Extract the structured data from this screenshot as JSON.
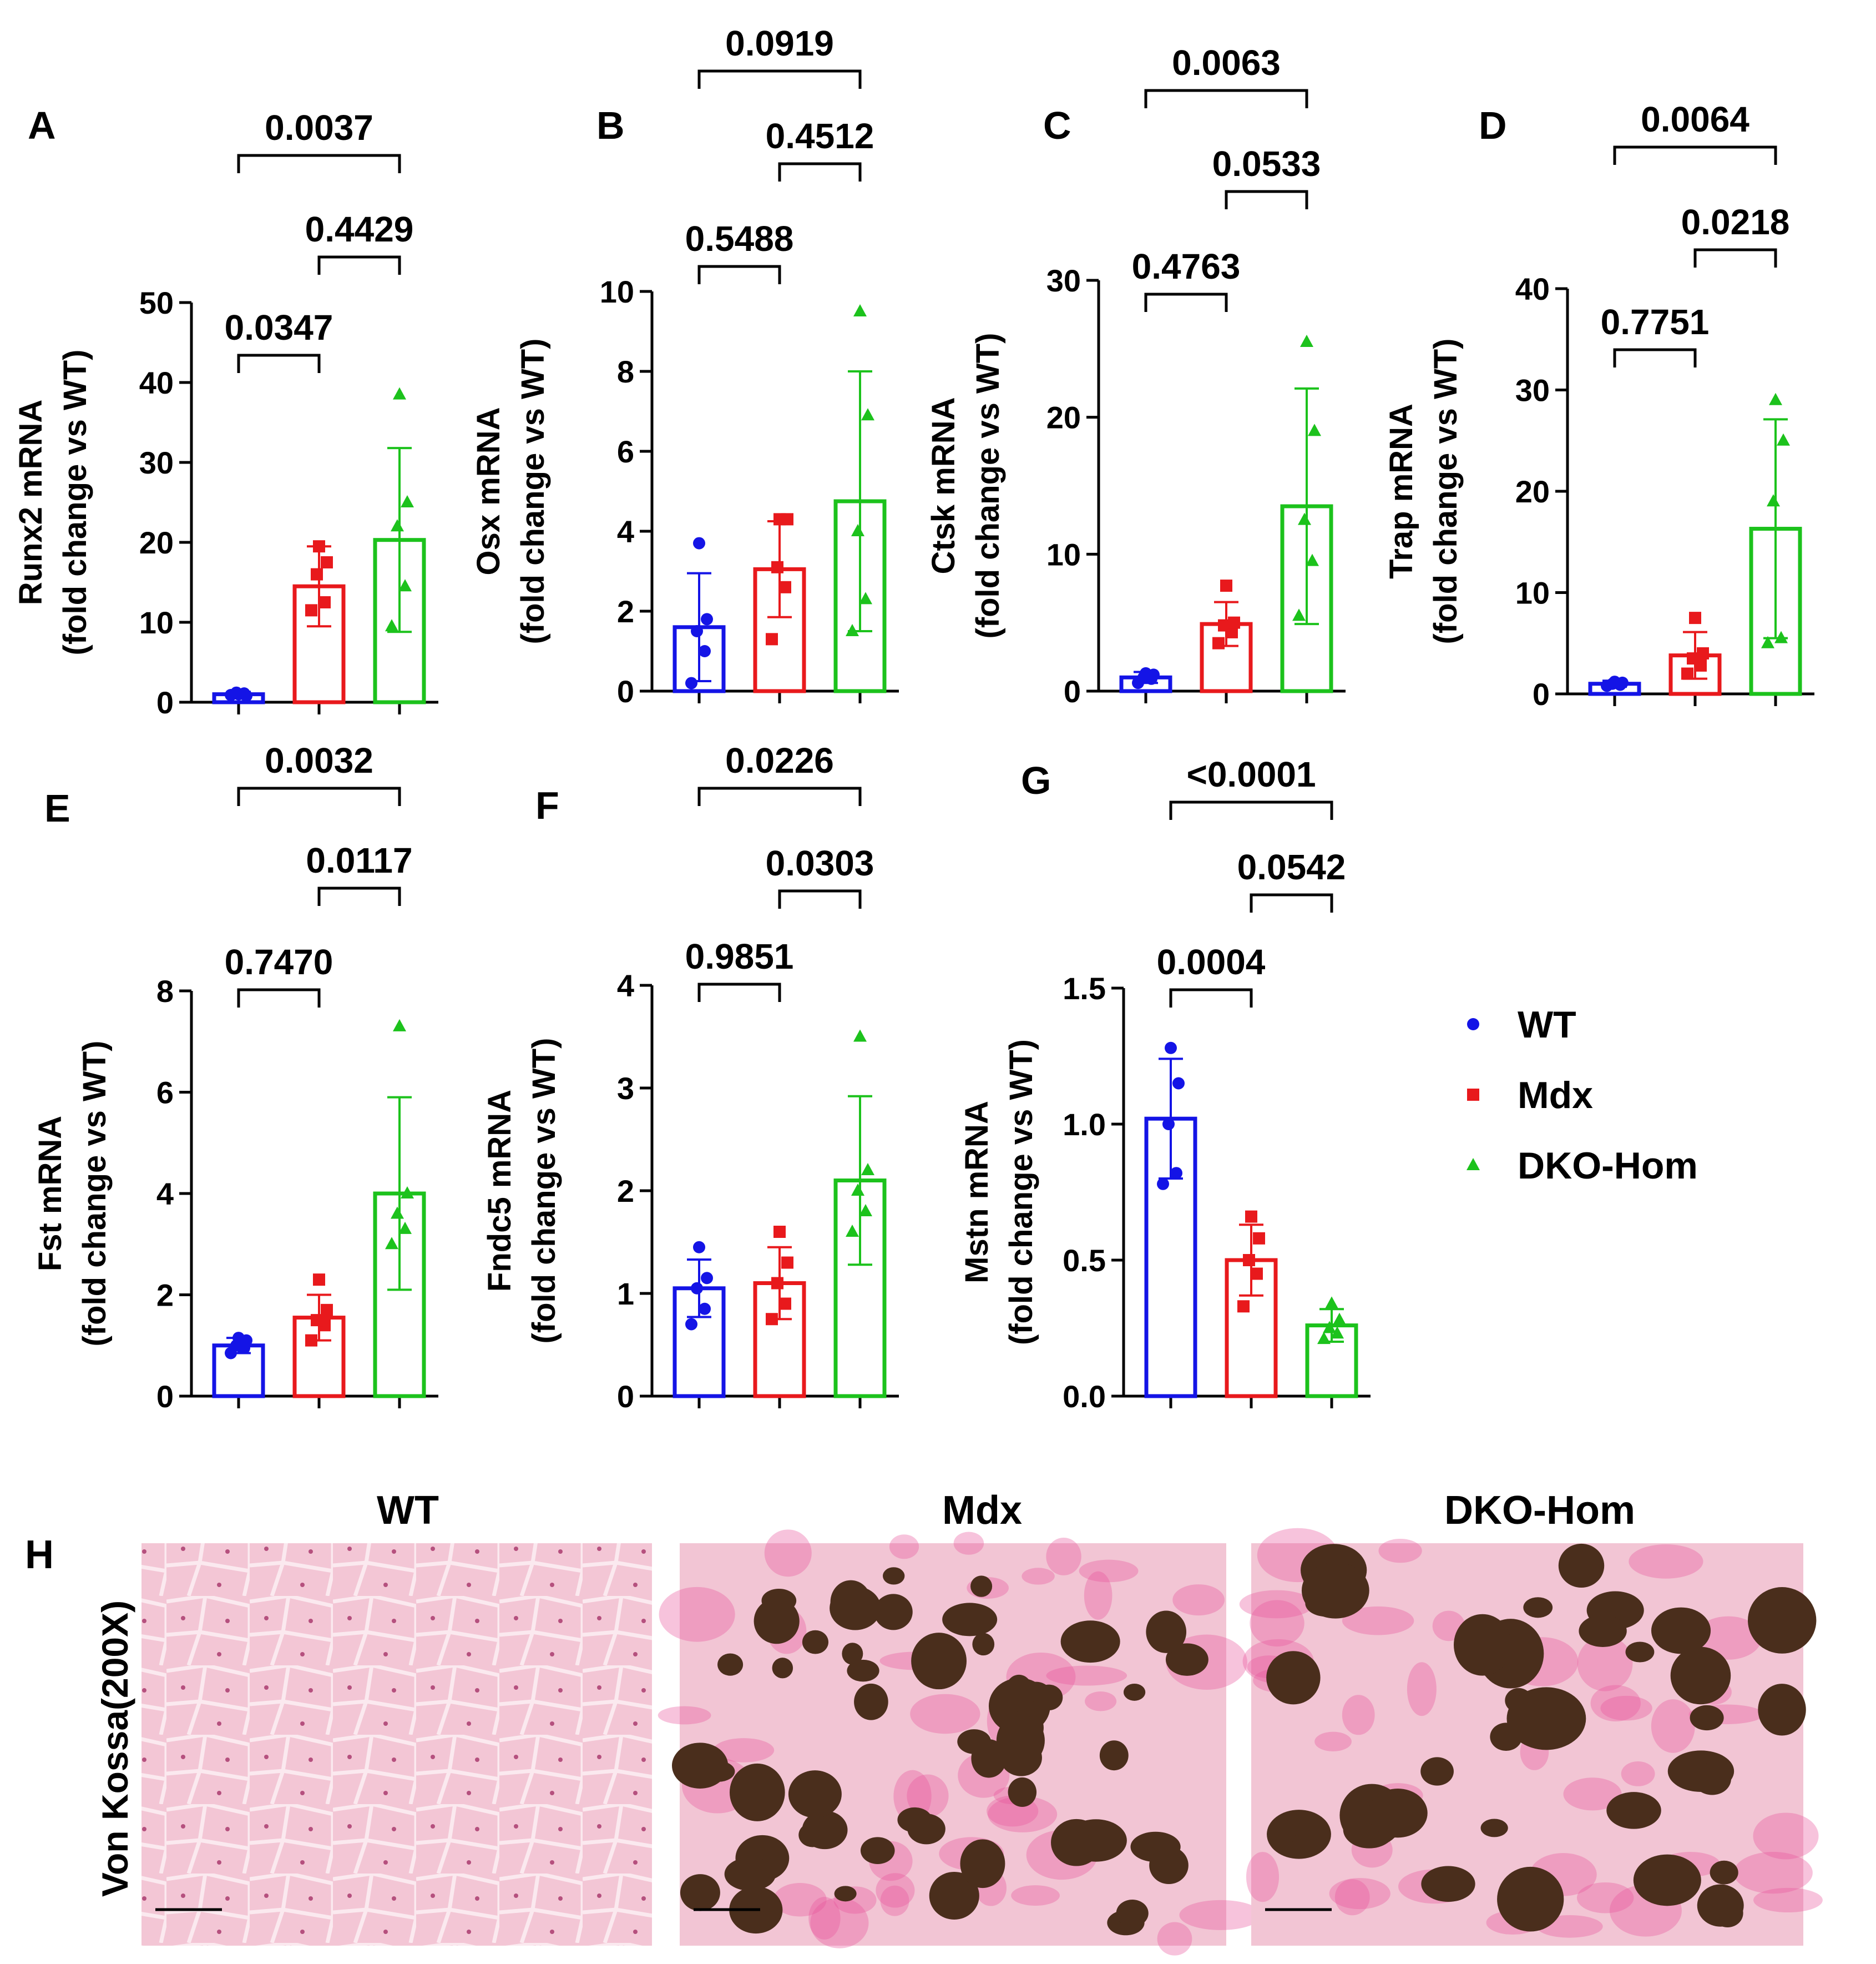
{
  "colors": {
    "WT": "#1414e6",
    "Mdx": "#e8191c",
    "DKO-Hom": "#1cc21c",
    "axis": "#000000",
    "tissue_bg": "#f2c5d4",
    "mineral": "#4a2e1c"
  },
  "legend": {
    "items": [
      {
        "label": "WT",
        "color": "#1414e6",
        "marker": "circle"
      },
      {
        "label": "Mdx",
        "color": "#e8191c",
        "marker": "square"
      },
      {
        "label": "DKO-Hom",
        "color": "#1cc21c",
        "marker": "triangle"
      }
    ]
  },
  "chart_data": [
    {
      "panel": "A",
      "type": "bar",
      "ylabel_line1": "Runx2 mRNA",
      "ylabel_line2": "(fold change vs  WT)",
      "ylim": [
        0,
        50
      ],
      "yticks": [
        "0",
        "10",
        "20",
        "30",
        "40",
        "50"
      ],
      "categories": [
        "WT",
        "Mdx",
        "DKO-Hom"
      ],
      "means": [
        1.0,
        14.5,
        20.3
      ],
      "sd": [
        0.3,
        5.0,
        11.5
      ],
      "points": [
        [
          0.9,
          1.1,
          1.2,
          0.8,
          1.0
        ],
        [
          11.5,
          12.5,
          16.0,
          17.5,
          19.5
        ],
        [
          9.5,
          14.5,
          22.0,
          25.0,
          38.5
        ]
      ],
      "comparisons": [
        {
          "p": "0.0347",
          "from": 0,
          "to": 1
        },
        {
          "p": "0.4429",
          "from": 1,
          "to": 2
        },
        {
          "p": "0.0037",
          "from": 0,
          "to": 2
        }
      ]
    },
    {
      "panel": "B",
      "type": "bar",
      "ylabel_line1": "Osx mRNA",
      "ylabel_line2": "(fold change vs WT)",
      "ylim": [
        0,
        10
      ],
      "yticks": [
        "0",
        "2",
        "4",
        "6",
        "8",
        "10"
      ],
      "categories": [
        "WT",
        "Mdx",
        "DKO-Hom"
      ],
      "means": [
        1.6,
        3.05,
        4.75
      ],
      "sd": [
        1.35,
        1.2,
        3.25
      ],
      "points": [
        [
          0.2,
          1.0,
          1.5,
          1.8,
          3.7
        ],
        [
          1.3,
          2.6,
          3.1,
          4.3,
          4.3
        ],
        [
          1.5,
          2.3,
          4.0,
          6.9,
          9.5
        ]
      ],
      "comparisons": [
        {
          "p": "0.5488",
          "from": 0,
          "to": 1
        },
        {
          "p": "0.4512",
          "from": 1,
          "to": 2
        },
        {
          "p": "0.0919",
          "from": 0,
          "to": 2
        }
      ]
    },
    {
      "panel": "C",
      "type": "bar",
      "ylabel_line1": "Ctsk mRNA",
      "ylabel_line2": "(fold change vs WT)",
      "ylim": [
        0,
        30
      ],
      "yticks": [
        "0",
        "10",
        "20",
        "30"
      ],
      "categories": [
        "WT",
        "Mdx",
        "DKO-Hom"
      ],
      "means": [
        1.0,
        4.9,
        13.5
      ],
      "sd": [
        0.4,
        1.6,
        8.6
      ],
      "points": [
        [
          0.6,
          0.9,
          1.0,
          1.2,
          1.3
        ],
        [
          3.5,
          4.3,
          4.8,
          5.0,
          7.7
        ],
        [
          5.5,
          9.5,
          12.5,
          19.0,
          25.5
        ]
      ],
      "comparisons": [
        {
          "p": "0.4763",
          "from": 0,
          "to": 1
        },
        {
          "p": "0.0533",
          "from": 1,
          "to": 2
        },
        {
          "p": "0.0063",
          "from": 0,
          "to": 2
        }
      ]
    },
    {
      "panel": "D",
      "type": "bar",
      "ylabel_line1": "Trap mRNA",
      "ylabel_line2": "(fold change vs WT)",
      "ylim": [
        0,
        40
      ],
      "yticks": [
        "0",
        "10",
        "20",
        "30",
        "40"
      ],
      "categories": [
        "WT",
        "Mdx",
        "DKO-Hom"
      ],
      "means": [
        1.0,
        3.8,
        16.3
      ],
      "sd": [
        0.3,
        2.3,
        10.8
      ],
      "points": [
        [
          0.8,
          0.9,
          1.0,
          1.1,
          1.2
        ],
        [
          2.0,
          2.8,
          3.5,
          4.0,
          7.5
        ],
        [
          5.0,
          5.5,
          19.0,
          25.0,
          29.0
        ]
      ],
      "comparisons": [
        {
          "p": "0.7751",
          "from": 0,
          "to": 1
        },
        {
          "p": "0.0218",
          "from": 1,
          "to": 2
        },
        {
          "p": "0.0064",
          "from": 0,
          "to": 2
        }
      ]
    },
    {
      "panel": "E",
      "type": "bar",
      "ylabel_line1": "Fst mRNA",
      "ylabel_line2": "(fold change vs WT)",
      "ylim": [
        0,
        8
      ],
      "yticks": [
        "0",
        "2",
        "4",
        "6",
        "8"
      ],
      "categories": [
        "WT",
        "Mdx",
        "DKO-Hom"
      ],
      "means": [
        1.0,
        1.55,
        4.0
      ],
      "sd": [
        0.15,
        0.45,
        1.9
      ],
      "points": [
        [
          0.85,
          0.95,
          1.0,
          1.1,
          1.15
        ],
        [
          1.1,
          1.4,
          1.5,
          1.7,
          2.3
        ],
        [
          3.0,
          3.3,
          3.6,
          4.0,
          7.3
        ]
      ],
      "comparisons": [
        {
          "p": "0.7470",
          "from": 0,
          "to": 1
        },
        {
          "p": "0.0117",
          "from": 1,
          "to": 2
        },
        {
          "p": "0.0032",
          "from": 0,
          "to": 2
        }
      ]
    },
    {
      "panel": "F",
      "type": "bar",
      "ylabel_line1": "Fndc5 mRNA",
      "ylabel_line2": "(fold change vs WT)",
      "ylim": [
        0,
        4
      ],
      "yticks": [
        "0",
        "1",
        "2",
        "3",
        "4"
      ],
      "categories": [
        "WT",
        "Mdx",
        "DKO-Hom"
      ],
      "means": [
        1.05,
        1.1,
        2.1
      ],
      "sd": [
        0.28,
        0.35,
        0.82
      ],
      "points": [
        [
          0.7,
          0.85,
          1.05,
          1.15,
          1.45
        ],
        [
          0.75,
          0.9,
          1.1,
          1.3,
          1.6
        ],
        [
          1.6,
          1.8,
          2.0,
          2.2,
          3.5
        ]
      ],
      "comparisons": [
        {
          "p": "0.9851",
          "from": 0,
          "to": 1
        },
        {
          "p": "0.0303",
          "from": 1,
          "to": 2
        },
        {
          "p": "0.0226",
          "from": 0,
          "to": 2
        }
      ]
    },
    {
      "panel": "G",
      "type": "bar",
      "ylabel_line1": "Mstn mRNA",
      "ylabel_line2": "(fold change vs WT)",
      "ylim": [
        0,
        1.5
      ],
      "yticks": [
        "0.0",
        "0.5",
        "1.0",
        "1.5"
      ],
      "categories": [
        "WT",
        "Mdx",
        "DKO-Hom"
      ],
      "means": [
        1.02,
        0.5,
        0.26
      ],
      "sd": [
        0.22,
        0.13,
        0.06
      ],
      "points": [
        [
          0.78,
          0.82,
          1.0,
          1.15,
          1.28
        ],
        [
          0.33,
          0.45,
          0.5,
          0.58,
          0.66
        ],
        [
          0.21,
          0.23,
          0.25,
          0.28,
          0.34
        ]
      ],
      "comparisons": [
        {
          "p": "0.0004",
          "from": 0,
          "to": 1
        },
        {
          "p": "0.0542",
          "from": 1,
          "to": 2
        },
        {
          "p": "<0.0001",
          "from": 0,
          "to": 2
        }
      ]
    }
  ],
  "micrographs": {
    "panel": "H",
    "ylabel": "Von Kossa(200X)",
    "titles": [
      "WT",
      "Mdx",
      "DKO-Hom"
    ]
  }
}
